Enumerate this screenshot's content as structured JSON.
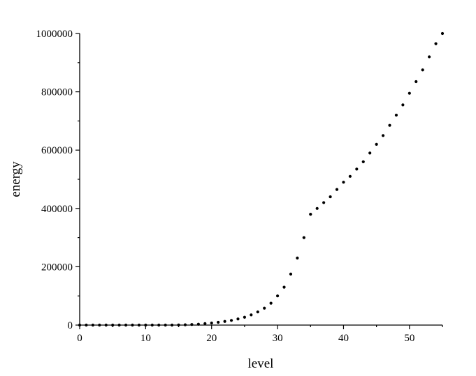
{
  "chart_data": {
    "type": "scatter",
    "title": "",
    "xlabel": "level",
    "ylabel": "energy",
    "xlim": [
      0,
      55
    ],
    "ylim": [
      0,
      1000000
    ],
    "x_ticks": [
      0,
      10,
      20,
      30,
      40,
      50
    ],
    "y_ticks": [
      0,
      200000,
      400000,
      600000,
      800000,
      1000000
    ],
    "x_tick_labels": [
      "0",
      "10",
      "20",
      "30",
      "40",
      "50"
    ],
    "y_tick_labels": [
      "0",
      "200000",
      "400000",
      "600000",
      "800000",
      "1000000"
    ],
    "grid": false,
    "legend": "none",
    "marker_color": "#000000",
    "series": [
      {
        "x": [
          0,
          1,
          2,
          3,
          4,
          5,
          6,
          7,
          8,
          9,
          10,
          11,
          12,
          13,
          14,
          15,
          16,
          17,
          18,
          19,
          20,
          21,
          22,
          23,
          24,
          25,
          26,
          27,
          28,
          29,
          30,
          31,
          32,
          33,
          34,
          35,
          36,
          37,
          38,
          39,
          40,
          41,
          42,
          43,
          44,
          45,
          46,
          47,
          48,
          49,
          50,
          51,
          52,
          53,
          54,
          55
        ],
        "y": [
          0,
          0,
          0,
          0,
          0,
          0,
          0,
          0,
          0,
          0,
          0,
          0,
          0,
          0,
          0,
          500,
          1000,
          2000,
          3000,
          5000,
          7000,
          9500,
          12500,
          16000,
          21000,
          27000,
          35000,
          45000,
          58000,
          75000,
          100000,
          130000,
          175000,
          230000,
          300000,
          380000,
          400000,
          420000,
          440000,
          465000,
          490000,
          510000,
          535000,
          560000,
          590000,
          620000,
          650000,
          685000,
          720000,
          755000,
          795000,
          835000,
          875000,
          920000,
          965000,
          1000000
        ]
      }
    ]
  }
}
